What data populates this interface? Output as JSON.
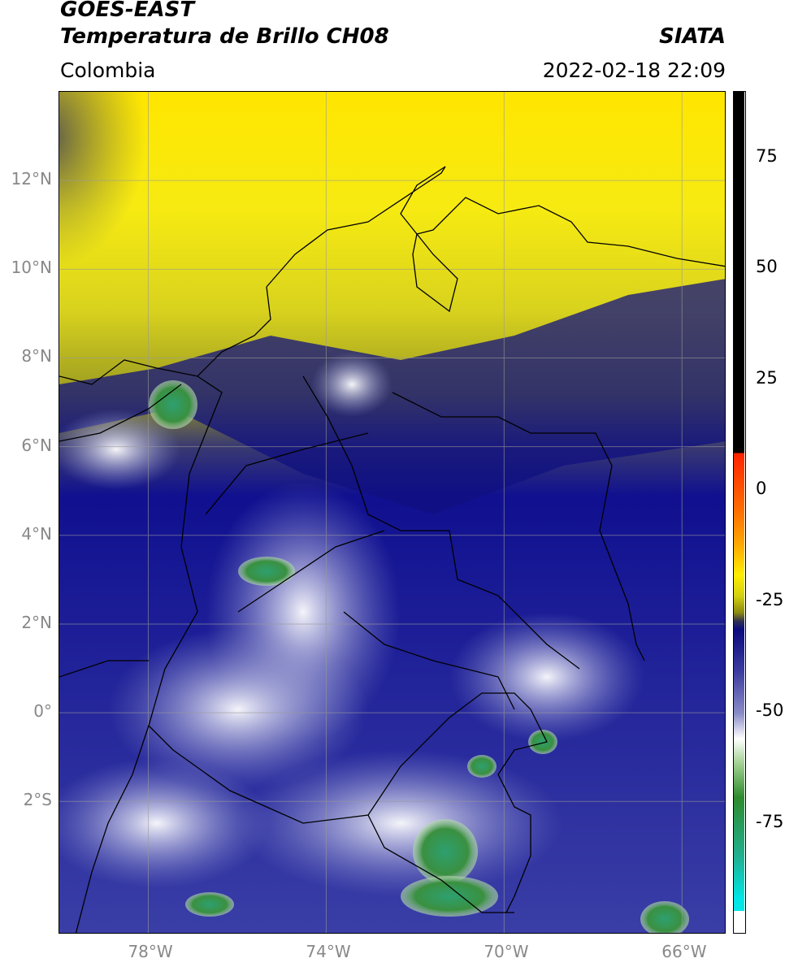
{
  "header": {
    "satellite": "GOES-EAST",
    "product": "Temperatura de Brillo CH08",
    "region": "Colombia",
    "institution": "SIATA",
    "timestamp": "2022-02-18 22:09"
  },
  "map": {
    "lat_range": [
      -5.0,
      14.0
    ],
    "lon_range": [
      -80.0,
      -65.0
    ],
    "lat_ticks": [
      {
        "value": 12,
        "label": "12°N"
      },
      {
        "value": 10,
        "label": "10°N"
      },
      {
        "value": 8,
        "label": "8°N"
      },
      {
        "value": 6,
        "label": "6°N"
      },
      {
        "value": 4,
        "label": "4°N"
      },
      {
        "value": 2,
        "label": "2°N"
      },
      {
        "value": 0,
        "label": "0°"
      },
      {
        "value": -2,
        "label": "2°S"
      }
    ],
    "lon_ticks": [
      {
        "value": -78,
        "label": "78°W"
      },
      {
        "value": -74,
        "label": "74°W"
      },
      {
        "value": -70,
        "label": "70°W"
      },
      {
        "value": -66,
        "label": "66°W"
      }
    ],
    "gridlines": true
  },
  "colorbar": {
    "range": [
      -100,
      90
    ],
    "ticks": [
      {
        "value": 75,
        "label": "75"
      },
      {
        "value": 50,
        "label": "50"
      },
      {
        "value": 25,
        "label": "25"
      },
      {
        "value": 0,
        "label": "0"
      },
      {
        "value": -25,
        "label": "-25"
      },
      {
        "value": -50,
        "label": "-50"
      },
      {
        "value": -75,
        "label": "-75"
      }
    ],
    "colors": {
      "top_black": "#000000",
      "red": "#ff2200",
      "orange": "#ff9900",
      "yellow": "#ffee00",
      "olive": "#8a8a10",
      "navy": "#0a0a80",
      "blue": "#3c3ca0",
      "white": "#ffffff",
      "green": "#2e8b2e",
      "teal": "#20b090",
      "cyan": "#00e5e5"
    }
  }
}
